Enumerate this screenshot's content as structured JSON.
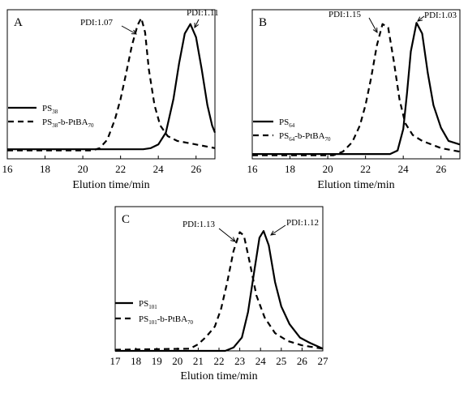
{
  "chart_data": [
    {
      "type": "line",
      "panel_label": "A",
      "xlabel": "Elution time/min",
      "xlim": [
        16,
        27
      ],
      "ylim": [
        0,
        1.25
      ],
      "xticks": [
        "16",
        "18",
        "20",
        "22",
        "24",
        "26"
      ],
      "grid": false,
      "legend_position": "left",
      "series": [
        {
          "name_main": "PS",
          "name_sub": "38",
          "name_rest": "",
          "style": "solid",
          "peak_x": 25.7,
          "points": [
            [
              16,
              0.08
            ],
            [
              23.2,
              0.08
            ],
            [
              23.6,
              0.09
            ],
            [
              24.0,
              0.12
            ],
            [
              24.4,
              0.22
            ],
            [
              24.8,
              0.5
            ],
            [
              25.1,
              0.8
            ],
            [
              25.4,
              1.05
            ],
            [
              25.7,
              1.13
            ],
            [
              26.0,
              1.02
            ],
            [
              26.3,
              0.75
            ],
            [
              26.6,
              0.45
            ],
            [
              26.85,
              0.28
            ],
            [
              27,
              0.22
            ]
          ],
          "annotation": "PDI:1.11"
        },
        {
          "name_main": "PS",
          "name_sub": "38",
          "name_rest": "-b-PtBA",
          "name_rest_sub": "70",
          "style": "dashed",
          "peak_x": 23.1,
          "points": [
            [
              16,
              0.07
            ],
            [
              20.5,
              0.07
            ],
            [
              20.9,
              0.09
            ],
            [
              21.3,
              0.16
            ],
            [
              21.7,
              0.33
            ],
            [
              22.0,
              0.5
            ],
            [
              22.3,
              0.72
            ],
            [
              22.6,
              0.95
            ],
            [
              22.9,
              1.12
            ],
            [
              23.1,
              1.18
            ],
            [
              23.3,
              1.06
            ],
            [
              23.5,
              0.75
            ],
            [
              23.8,
              0.45
            ],
            [
              24.1,
              0.28
            ],
            [
              24.5,
              0.19
            ],
            [
              25.0,
              0.15
            ],
            [
              26,
              0.12
            ],
            [
              27,
              0.09
            ]
          ],
          "annotation": "PDI:1.07"
        }
      ]
    },
    {
      "type": "line",
      "panel_label": "B",
      "xlabel": "Elution time/min",
      "xlim": [
        16,
        27
      ],
      "ylim": [
        0,
        1.25
      ],
      "xticks": [
        "16",
        "18",
        "20",
        "22",
        "24",
        "26"
      ],
      "grid": false,
      "legend_position": "left",
      "series": [
        {
          "name_main": "PS",
          "name_sub": "64",
          "name_rest": "",
          "style": "solid",
          "peak_x": 24.7,
          "points": [
            [
              16,
              0.04
            ],
            [
              23.3,
              0.04
            ],
            [
              23.7,
              0.07
            ],
            [
              24.0,
              0.25
            ],
            [
              24.2,
              0.55
            ],
            [
              24.4,
              0.9
            ],
            [
              24.7,
              1.14
            ],
            [
              25.0,
              1.05
            ],
            [
              25.3,
              0.72
            ],
            [
              25.6,
              0.45
            ],
            [
              26.0,
              0.26
            ],
            [
              26.4,
              0.15
            ],
            [
              27,
              0.12
            ]
          ],
          "annotation": "PDI:1.03"
        },
        {
          "name_main": "PS",
          "name_sub": "64",
          "name_rest": "-b-PtBA",
          "name_rest_sub": "70",
          "style": "dashed",
          "peak_x": 23.0,
          "points": [
            [
              16,
              0.03
            ],
            [
              20.3,
              0.03
            ],
            [
              20.8,
              0.06
            ],
            [
              21.3,
              0.14
            ],
            [
              21.7,
              0.28
            ],
            [
              22.0,
              0.45
            ],
            [
              22.3,
              0.68
            ],
            [
              22.6,
              0.95
            ],
            [
              22.9,
              1.13
            ],
            [
              23.2,
              1.1
            ],
            [
              23.5,
              0.82
            ],
            [
              23.8,
              0.5
            ],
            [
              24.1,
              0.3
            ],
            [
              24.5,
              0.2
            ],
            [
              25.0,
              0.15
            ],
            [
              26,
              0.09
            ],
            [
              27,
              0.06
            ]
          ],
          "annotation": "PDI:1.15"
        }
      ]
    },
    {
      "type": "line",
      "panel_label": "C",
      "xlabel": "Elution time/min",
      "xlim": [
        17,
        27
      ],
      "ylim": [
        0,
        1.3
      ],
      "xticks": [
        "17",
        "18",
        "19",
        "20",
        "21",
        "22",
        "23",
        "24",
        "25",
        "26",
        "27"
      ],
      "grid": false,
      "legend_position": "left",
      "series": [
        {
          "name_main": "PS",
          "name_sub": "101",
          "name_rest": "",
          "style": "solid",
          "peak_x": 24.1,
          "points": [
            [
              17,
              0.0
            ],
            [
              22.3,
              0.0
            ],
            [
              22.7,
              0.03
            ],
            [
              23.1,
              0.12
            ],
            [
              23.4,
              0.35
            ],
            [
              23.7,
              0.72
            ],
            [
              23.95,
              1.02
            ],
            [
              24.15,
              1.08
            ],
            [
              24.4,
              0.95
            ],
            [
              24.7,
              0.62
            ],
            [
              25.0,
              0.4
            ],
            [
              25.4,
              0.24
            ],
            [
              25.9,
              0.12
            ],
            [
              26.4,
              0.07
            ],
            [
              27,
              0.02
            ]
          ],
          "annotation": "PDI:1.12"
        },
        {
          "name_main": "PS",
          "name_sub": "101",
          "name_rest": "-b-PtBA",
          "name_rest_sub": "70",
          "style": "dashed",
          "peak_x": 23.0,
          "points": [
            [
              17,
              0.01
            ],
            [
              20.6,
              0.02
            ],
            [
              21.0,
              0.06
            ],
            [
              21.4,
              0.13
            ],
            [
              21.8,
              0.22
            ],
            [
              22.1,
              0.38
            ],
            [
              22.4,
              0.62
            ],
            [
              22.7,
              0.9
            ],
            [
              23.0,
              1.07
            ],
            [
              23.2,
              1.04
            ],
            [
              23.5,
              0.78
            ],
            [
              23.8,
              0.5
            ],
            [
              24.2,
              0.3
            ],
            [
              24.7,
              0.16
            ],
            [
              25.3,
              0.09
            ],
            [
              26,
              0.05
            ],
            [
              27,
              0.02
            ]
          ],
          "annotation": "PDI:1.13"
        }
      ]
    }
  ]
}
